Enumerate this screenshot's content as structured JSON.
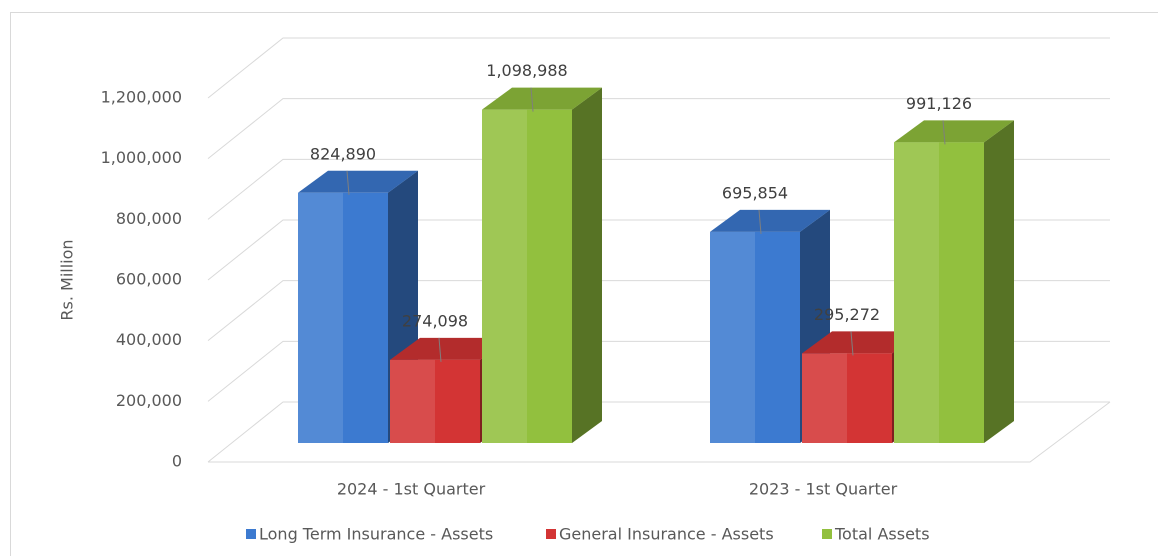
{
  "chart_data": {
    "type": "bar3d",
    "categories": [
      "2024 - 1st  Quarter",
      "2023 - 1st  Quarter"
    ],
    "y_label": "Rs. Million",
    "series": [
      {
        "name": "Long Term Insurance - Assets",
        "color": "#3c7ad0",
        "values": [
          824890,
          695854
        ],
        "value_labels": [
          "824,890",
          "695,854"
        ]
      },
      {
        "name": "General Insurance - Assets",
        "color": "#d33434",
        "values": [
          274098,
          295272
        ],
        "value_labels": [
          "274,098",
          "295,272"
        ]
      },
      {
        "name": "Total Assets",
        "color": "#92c03e",
        "values": [
          1098988,
          991126
        ],
        "value_labels": [
          "1,098,988",
          "991,126"
        ]
      }
    ],
    "ylim": [
      0,
      1200000
    ],
    "yticks": [
      0,
      {
        "value": 200000,
        "label": "200,000"
      },
      {
        "value": 400000,
        "label": "400,000"
      },
      {
        "value": 600000,
        "label": "600,000"
      },
      {
        "value": 800000,
        "label": "800,000"
      },
      {
        "value": 1000000,
        "label": "1,000,000"
      },
      {
        "value": 1200000,
        "label": "1,200,000"
      }
    ],
    "grid": true,
    "legend": "bottom"
  }
}
